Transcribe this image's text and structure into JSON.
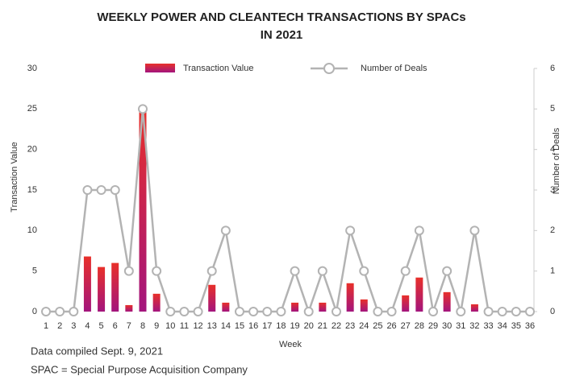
{
  "chart_data": {
    "type": "bar",
    "title": [
      "WEEKLY POWER AND CLEANTECH TRANSACTIONS BY SPACs",
      "IN 2021"
    ],
    "xlabel": "Week",
    "ylabel": "Transaction Value",
    "y2label": "Number of Deals",
    "categories": [
      "1",
      "2",
      "3",
      "4",
      "5",
      "6",
      "7",
      "8",
      "9",
      "10",
      "11",
      "12",
      "13",
      "14",
      "15",
      "16",
      "17",
      "18",
      "19",
      "20",
      "21",
      "22",
      "23",
      "24",
      "25",
      "26",
      "27",
      "28",
      "29",
      "30",
      "31",
      "32",
      "33",
      "34",
      "35",
      "36"
    ],
    "series": [
      {
        "name": "Transaction Value",
        "type": "bar",
        "color": [
          "#e8302a",
          "#a3157d"
        ],
        "values": [
          0,
          0,
          0,
          6.8,
          5.5,
          6,
          0.8,
          25,
          2.2,
          0,
          0,
          0,
          3.3,
          1.1,
          0,
          0,
          0,
          0,
          1.1,
          0,
          1.1,
          0,
          3.5,
          1.5,
          0,
          0,
          2,
          4.2,
          0,
          2.4,
          0,
          0.9,
          0,
          0,
          0,
          0
        ]
      },
      {
        "name": "Number of Deals",
        "type": "line",
        "axis": "y2",
        "color": "#b3b3b3",
        "values": [
          0,
          0,
          0,
          3,
          3,
          3,
          1,
          5,
          1,
          0,
          0,
          0,
          1,
          2,
          0,
          0,
          0,
          0,
          1,
          0,
          1,
          0,
          2,
          1,
          0,
          0,
          1,
          2,
          0,
          1,
          0,
          2,
          0,
          0,
          0,
          0
        ]
      }
    ],
    "ylim": [
      0,
      30
    ],
    "yticks": [
      0,
      5,
      10,
      15,
      20,
      25,
      30
    ],
    "y2lim": [
      0,
      6
    ],
    "y2ticks": [
      0,
      1,
      2,
      3,
      4,
      5,
      6
    ],
    "notes": [
      "Data compiled Sept. 9, 2021",
      "SPAC = Special Purpose Acquisition Company"
    ]
  }
}
